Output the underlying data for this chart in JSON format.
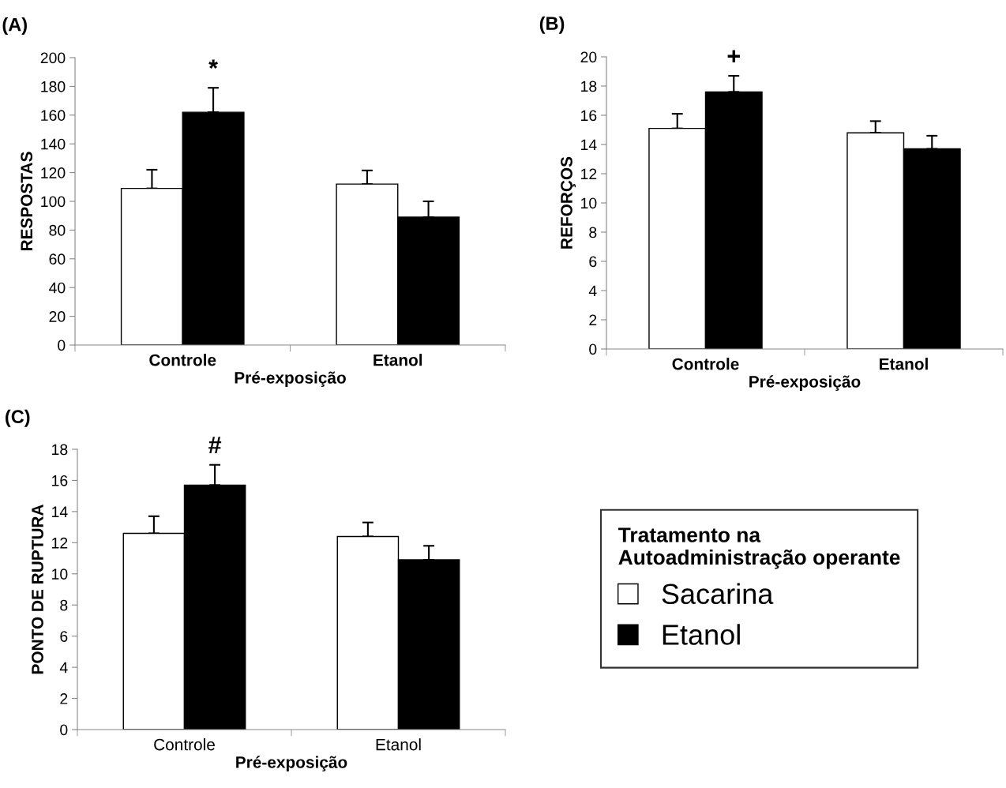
{
  "chart_data": [
    {
      "type": "bar",
      "title": "(A)",
      "ylabel": "RESPOSTAS",
      "xlabel": "Pré-exposição",
      "categories": [
        "Controle",
        "Etanol"
      ],
      "ylim": [
        0,
        200
      ],
      "yticks": [
        0,
        20,
        40,
        60,
        80,
        100,
        120,
        140,
        160,
        180,
        200
      ],
      "grid": false,
      "legend": false,
      "series": [
        {
          "color": "#ffffff",
          "values": [
            109,
            112
          ],
          "errors": [
            [
              109,
              122
            ],
            [
              112,
              121.5
            ]
          ]
        },
        {
          "color": "#000000",
          "values": [
            162,
            89
          ],
          "errors": [
            [
              162,
              179
            ],
            [
              89,
              100
            ]
          ]
        }
      ],
      "annotations": [
        "*"
      ]
    },
    {
      "type": "bar",
      "title": "(B)",
      "ylabel": "REFORÇOS",
      "xlabel": "Pré-exposição",
      "categories": [
        "Controle",
        "Etanol"
      ],
      "ylim": [
        0,
        20
      ],
      "yticks": [
        0,
        2,
        4,
        6,
        8,
        10,
        12,
        14,
        16,
        18,
        20
      ],
      "grid": false,
      "legend": false,
      "series": [
        {
          "color": "#ffffff",
          "values": [
            15.1,
            14.8
          ],
          "errors": [
            [
              15.1,
              16.1
            ],
            [
              14.8,
              15.6
            ]
          ]
        },
        {
          "color": "#000000",
          "values": [
            17.6,
            13.7
          ],
          "errors": [
            [
              17.6,
              18.7
            ],
            [
              13.7,
              14.6
            ]
          ]
        }
      ],
      "annotations": [
        "+"
      ]
    },
    {
      "type": "bar",
      "title": "(C)",
      "ylabel": "PONTO DE RUPTURA",
      "xlabel": "Pré-exposição",
      "categories": [
        "Controle",
        "Etanol"
      ],
      "ylim": [
        0,
        18
      ],
      "yticks": [
        0,
        2,
        4,
        6,
        8,
        10,
        12,
        14,
        16,
        18
      ],
      "grid": false,
      "legend": "right",
      "legend_title": "Tratamento na\nAutoadministração operante",
      "series": [
        {
          "name": "Sacarina",
          "color": "#ffffff",
          "values": [
            12.6,
            12.4
          ],
          "errors": [
            [
              12.6,
              13.7
            ],
            [
              12.4,
              13.3
            ]
          ]
        },
        {
          "name": "Etanol",
          "color": "#000000",
          "values": [
            15.7,
            10.9
          ],
          "errors": [
            [
              15.7,
              17.0
            ],
            [
              10.9,
              11.8
            ]
          ]
        }
      ],
      "annotations": [
        "#"
      ]
    }
  ]
}
